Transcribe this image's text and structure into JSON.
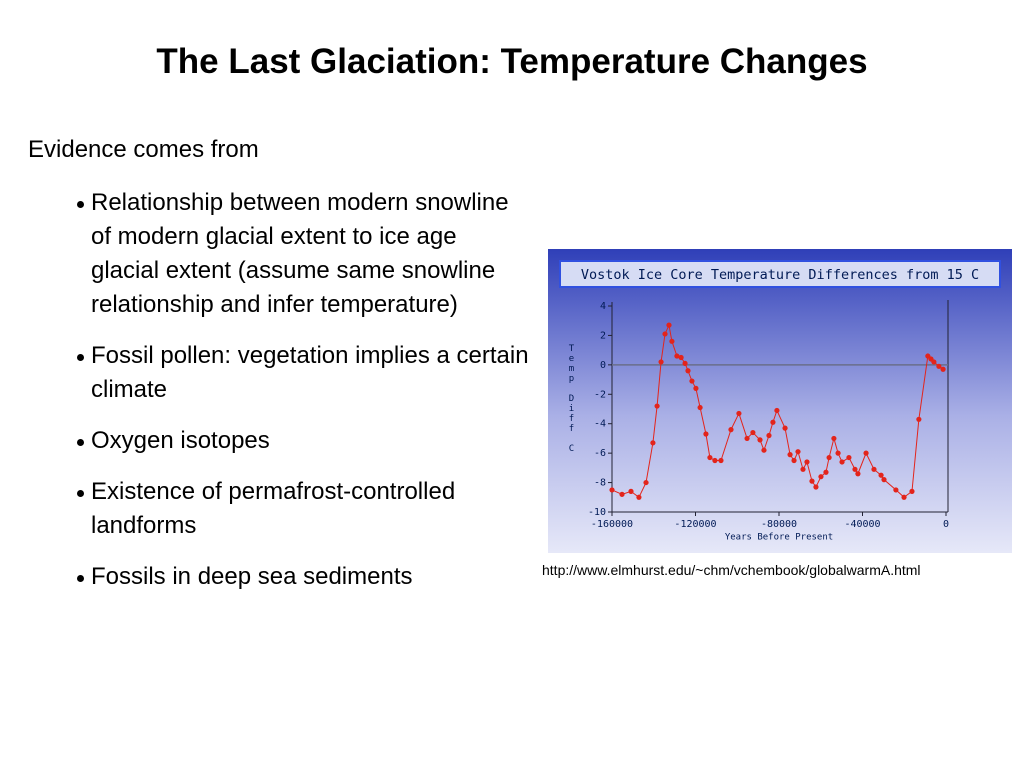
{
  "slide": {
    "title": "The Last Glaciation: Temperature Changes",
    "intro": "Evidence comes from",
    "bullets": [
      "Relationship between modern snowline of modern glacial extent to ice age glacial extent (assume same snowline relationship and infer temperature)",
      "Fossil pollen: vegetation implies a certain climate",
      "Oxygen isotopes",
      "Existence of permafrost-controlled landforms",
      "Fossils in deep sea sediments"
    ],
    "caption": "http://www.elmhurst.edu/~chm/vchembook/globalwarmA.html"
  },
  "chart_data": {
    "type": "line",
    "title": "Vostok Ice Core Temperature Differences from 15 C",
    "x_label": "Years Before Present",
    "y_label": "Temp Diff C",
    "x": [
      -160000,
      -155200,
      -150900,
      -147100,
      -143700,
      -140400,
      -138400,
      -136500,
      -134600,
      -132700,
      -131300,
      -128900,
      -126900,
      -125000,
      -123600,
      -121700,
      -119800,
      -117800,
      -115000,
      -113100,
      -110700,
      -107800,
      -103000,
      -99200,
      -95300,
      -92500,
      -89100,
      -87200,
      -84800,
      -82900,
      -81000,
      -77100,
      -74700,
      -72800,
      -70900,
      -68500,
      -66600,
      -64200,
      -62300,
      -59900,
      -57500,
      -56000,
      -53700,
      -51700,
      -49800,
      -46500,
      -43600,
      -42200,
      -38300,
      -34500,
      -31100,
      -29700,
      -24000,
      -20100,
      -16300,
      -13000,
      -8700,
      -7200,
      -5800,
      -3400,
      -1400
    ],
    "values": [
      -8.5,
      -8.8,
      -8.6,
      -9.0,
      -8.0,
      -5.3,
      -2.8,
      0.2,
      2.1,
      2.7,
      1.6,
      0.6,
      0.5,
      0.1,
      -0.4,
      -1.1,
      -1.6,
      -2.9,
      -4.7,
      -6.3,
      -6.5,
      -6.5,
      -4.4,
      -3.3,
      -5.0,
      -4.6,
      -5.1,
      -5.8,
      -4.8,
      -3.9,
      -3.1,
      -4.3,
      -6.1,
      -6.5,
      -5.9,
      -7.1,
      -6.6,
      -7.9,
      -8.3,
      -7.6,
      -7.3,
      -6.3,
      -5.0,
      -6.0,
      -6.6,
      -6.3,
      -7.1,
      -7.4,
      -6.0,
      -7.1,
      -7.5,
      -7.8,
      -8.5,
      -9.0,
      -8.6,
      -3.7,
      0.6,
      0.4,
      0.2,
      -0.1,
      -0.3
    ],
    "color": "#e3241b",
    "xlim": [
      -160000,
      0
    ],
    "xticks": [
      -160000,
      -120000,
      -80000,
      -40000,
      0
    ],
    "ylim": [
      -10,
      4
    ],
    "yticks": [
      4,
      2,
      0,
      -2,
      -4,
      -6,
      -8,
      -10
    ]
  }
}
